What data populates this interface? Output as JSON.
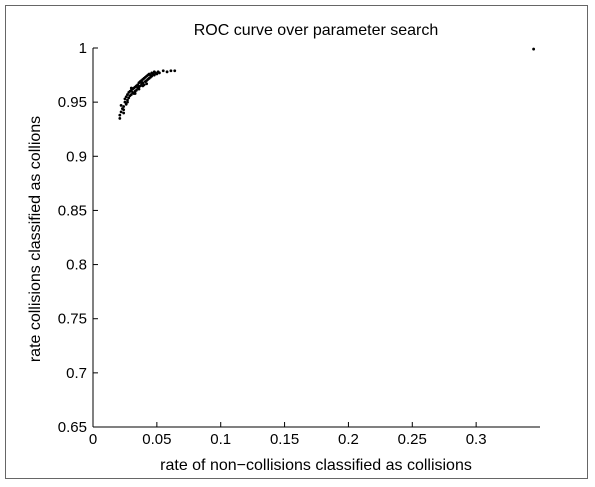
{
  "chart_data": {
    "type": "scatter",
    "title": "ROC curve over parameter search",
    "xlabel": "rate of non−collisions classified as collisions",
    "ylabel": "rate collisions classified as collions",
    "xlim": [
      0,
      0.35
    ],
    "ylim": [
      0.65,
      1.0
    ],
    "xticks": [
      0,
      0.05,
      0.1,
      0.15,
      0.2,
      0.25,
      0.3
    ],
    "xtick_labels": [
      "0",
      "0.05",
      "0.1",
      "0.15",
      "0.2",
      "0.25",
      "0.3"
    ],
    "yticks": [
      0.65,
      0.7,
      0.75,
      0.8,
      0.85,
      0.9,
      0.95,
      1.0
    ],
    "ytick_labels": [
      "0.65",
      "0.7",
      "0.75",
      "0.8",
      "0.85",
      "0.9",
      "0.95",
      "1"
    ],
    "grid": false,
    "marker_color": "#000000",
    "points": [
      [
        0.021,
        0.935
      ],
      [
        0.021,
        0.938
      ],
      [
        0.022,
        0.941
      ],
      [
        0.023,
        0.944
      ],
      [
        0.022,
        0.947
      ],
      [
        0.024,
        0.94
      ],
      [
        0.024,
        0.946
      ],
      [
        0.025,
        0.95
      ],
      [
        0.025,
        0.953
      ],
      [
        0.026,
        0.948
      ],
      [
        0.026,
        0.955
      ],
      [
        0.027,
        0.952
      ],
      [
        0.027,
        0.957
      ],
      [
        0.028,
        0.954
      ],
      [
        0.028,
        0.959
      ],
      [
        0.029,
        0.956
      ],
      [
        0.029,
        0.96
      ],
      [
        0.03,
        0.957
      ],
      [
        0.03,
        0.961
      ],
      [
        0.031,
        0.959
      ],
      [
        0.031,
        0.962
      ],
      [
        0.032,
        0.958
      ],
      [
        0.032,
        0.963
      ],
      [
        0.033,
        0.96
      ],
      [
        0.033,
        0.964
      ],
      [
        0.034,
        0.961
      ],
      [
        0.034,
        0.965
      ],
      [
        0.035,
        0.963
      ],
      [
        0.035,
        0.966
      ],
      [
        0.036,
        0.964
      ],
      [
        0.036,
        0.968
      ],
      [
        0.037,
        0.965
      ],
      [
        0.037,
        0.969
      ],
      [
        0.038,
        0.967
      ],
      [
        0.038,
        0.97
      ],
      [
        0.039,
        0.968
      ],
      [
        0.039,
        0.971
      ],
      [
        0.04,
        0.966
      ],
      [
        0.04,
        0.972
      ],
      [
        0.041,
        0.969
      ],
      [
        0.041,
        0.973
      ],
      [
        0.042,
        0.97
      ],
      [
        0.042,
        0.974
      ],
      [
        0.043,
        0.971
      ],
      [
        0.043,
        0.975
      ],
      [
        0.044,
        0.972
      ],
      [
        0.044,
        0.976
      ],
      [
        0.045,
        0.973
      ],
      [
        0.045,
        0.975
      ],
      [
        0.046,
        0.974
      ],
      [
        0.046,
        0.977
      ],
      [
        0.047,
        0.976
      ],
      [
        0.048,
        0.975
      ],
      [
        0.048,
        0.978
      ],
      [
        0.049,
        0.977
      ],
      [
        0.05,
        0.976
      ],
      [
        0.051,
        0.978
      ],
      [
        0.052,
        0.977
      ],
      [
        0.055,
        0.979
      ],
      [
        0.058,
        0.978
      ],
      [
        0.061,
        0.979
      ],
      [
        0.064,
        0.979
      ],
      [
        0.03,
        0.963
      ],
      [
        0.033,
        0.958
      ],
      [
        0.036,
        0.962
      ],
      [
        0.039,
        0.965
      ],
      [
        0.042,
        0.967
      ],
      [
        0.027,
        0.95
      ],
      [
        0.024,
        0.943
      ],
      [
        0.345,
        0.999
      ]
    ]
  }
}
